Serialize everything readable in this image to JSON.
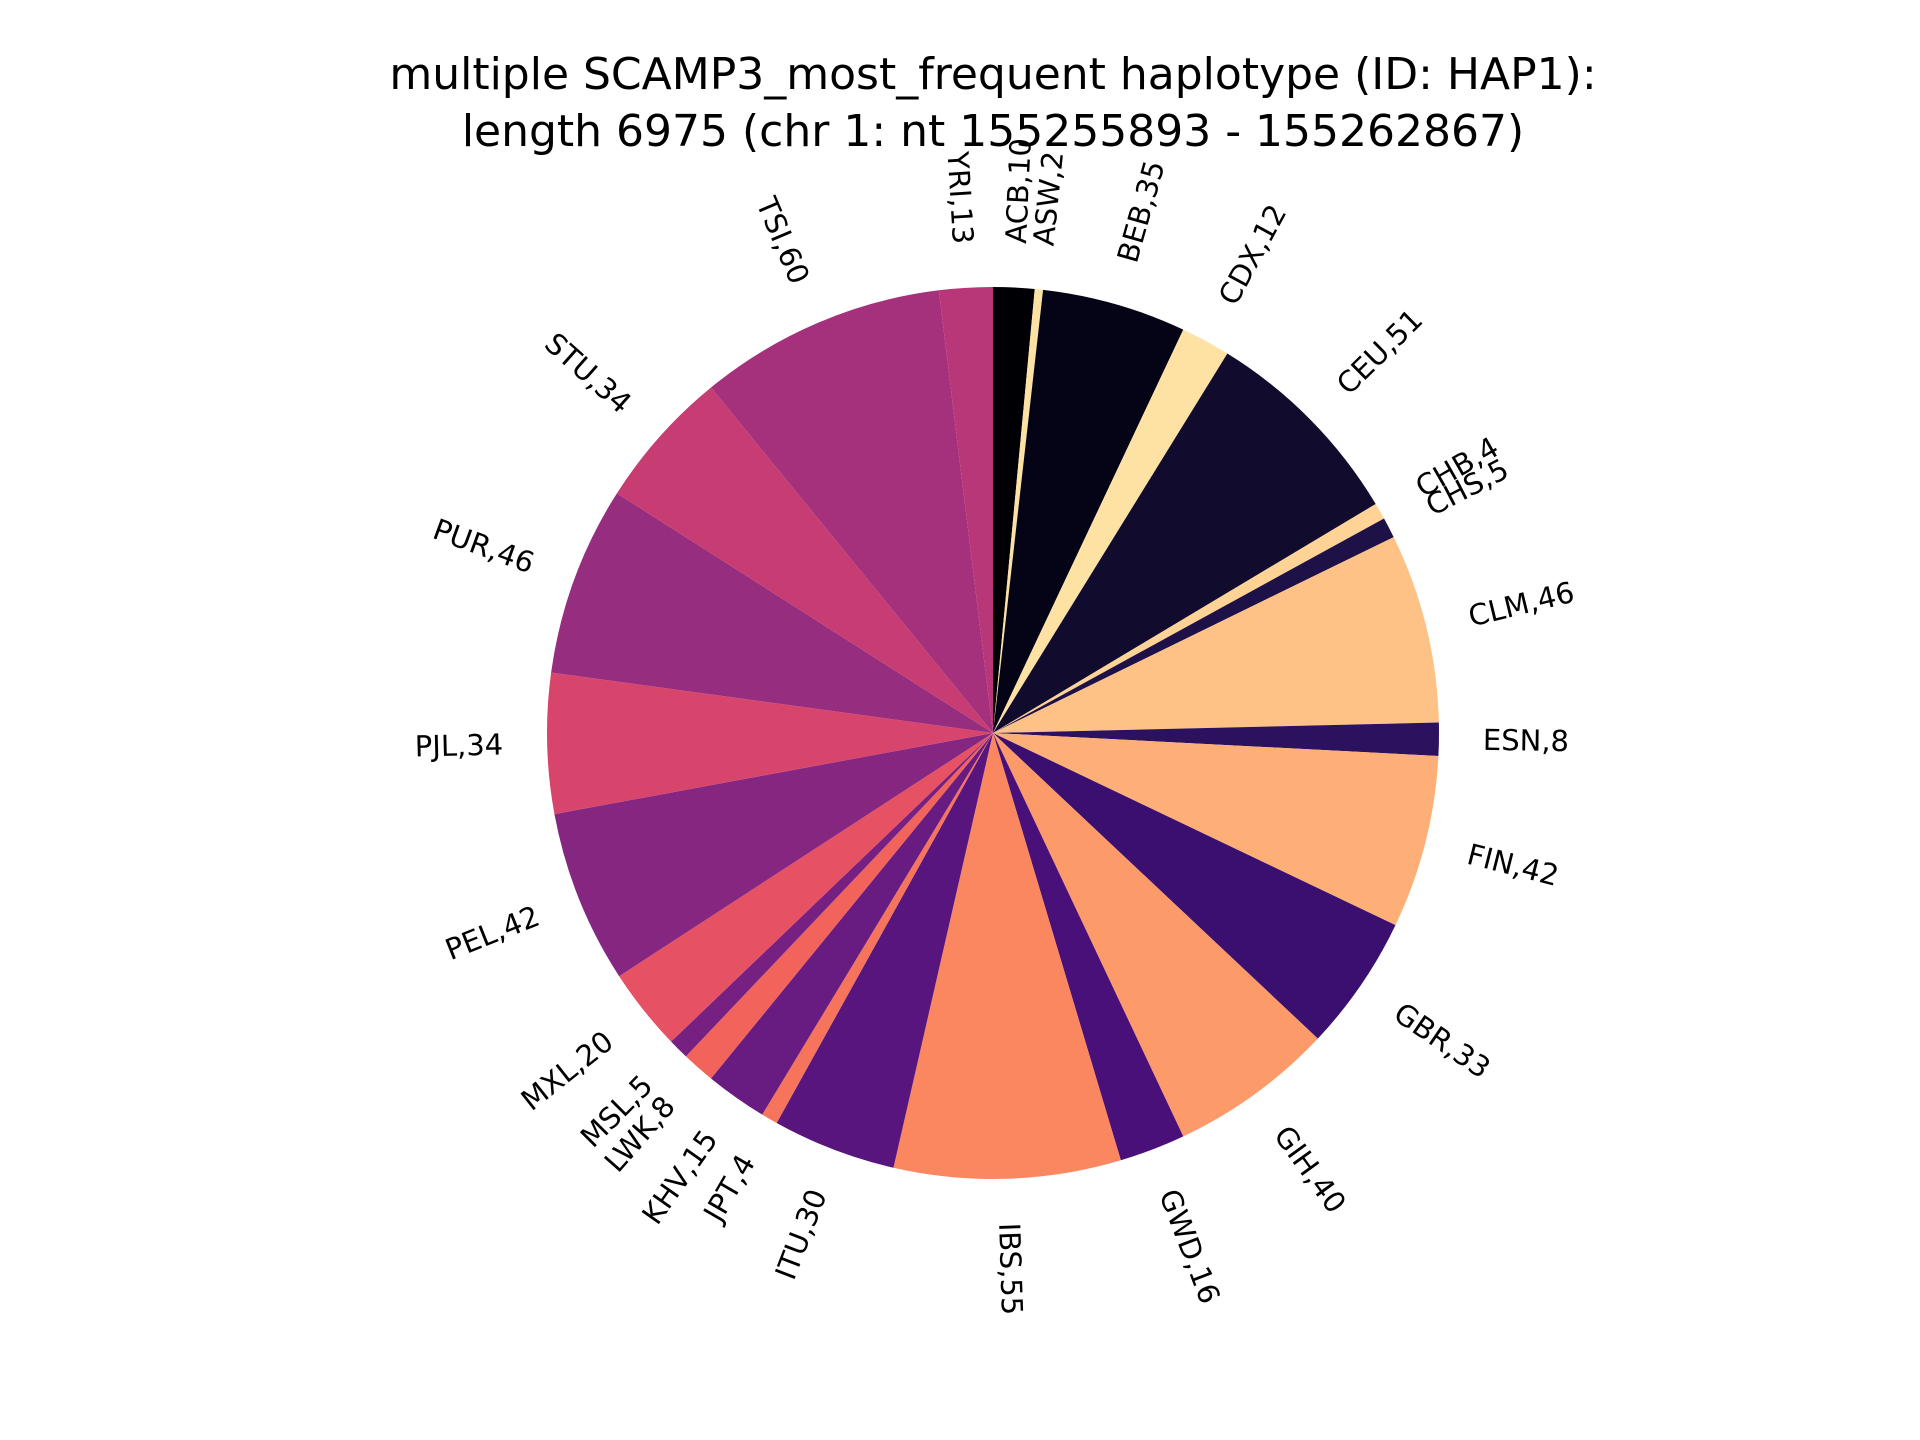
{
  "chart_data": {
    "type": "pie",
    "title_line1": "multiple SCAMP3_most_frequent haplotype (ID: HAP1):",
    "title_line2": "length 6975 (chr 1: nt 155255893 - 155262867)",
    "start": "top",
    "direction": "clockwise",
    "slices": [
      {
        "label": "ACB,10",
        "value": 10,
        "color": "#000004"
      },
      {
        "label": "ASW,2",
        "value": 2,
        "color": "#fce1a4"
      },
      {
        "label": "BEB,35",
        "value": 35,
        "color": "#050417"
      },
      {
        "label": "CDX,12",
        "value": 12,
        "color": "#fde2a4"
      },
      {
        "label": "CEU,51",
        "value": 51,
        "color": "#110c2e"
      },
      {
        "label": "CHB,4",
        "value": 4,
        "color": "#fed395"
      },
      {
        "label": "CHS,5",
        "value": 5,
        "color": "#1d1147"
      },
      {
        "label": "CLM,46",
        "value": 46,
        "color": "#fec287"
      },
      {
        "label": "ESN,8",
        "value": 8,
        "color": "#2b115e"
      },
      {
        "label": "FIN,42",
        "value": 42,
        "color": "#feaf78"
      },
      {
        "label": "GBR,33",
        "value": 33,
        "color": "#3b0f6f"
      },
      {
        "label": "GIH,40",
        "value": 40,
        "color": "#fd9a6a"
      },
      {
        "label": "GWD,16",
        "value": 16,
        "color": "#4a1079"
      },
      {
        "label": "IBS,55",
        "value": 55,
        "color": "#fb8761"
      },
      {
        "label": "ITU,30",
        "value": 30,
        "color": "#59157e"
      },
      {
        "label": "JPT,4",
        "value": 4,
        "color": "#f7745c"
      },
      {
        "label": "KHV,15",
        "value": 15,
        "color": "#681c81"
      },
      {
        "label": "LWK,8",
        "value": 8,
        "color": "#f2635c"
      },
      {
        "label": "MSL,5",
        "value": 5,
        "color": "#762181"
      },
      {
        "label": "MXL,20",
        "value": 20,
        "color": "#e65164"
      },
      {
        "label": "PEL,42",
        "value": 42,
        "color": "#852781"
      },
      {
        "label": "PJL,34",
        "value": 34,
        "color": "#d8456c"
      },
      {
        "label": "PUR,46",
        "value": 46,
        "color": "#962d7e"
      },
      {
        "label": "STU,34",
        "value": 34,
        "color": "#c73d73"
      },
      {
        "label": "TSI,60",
        "value": 60,
        "color": "#a5317c"
      },
      {
        "label": "YRI,13",
        "value": 13,
        "color": "#b73779"
      }
    ]
  }
}
